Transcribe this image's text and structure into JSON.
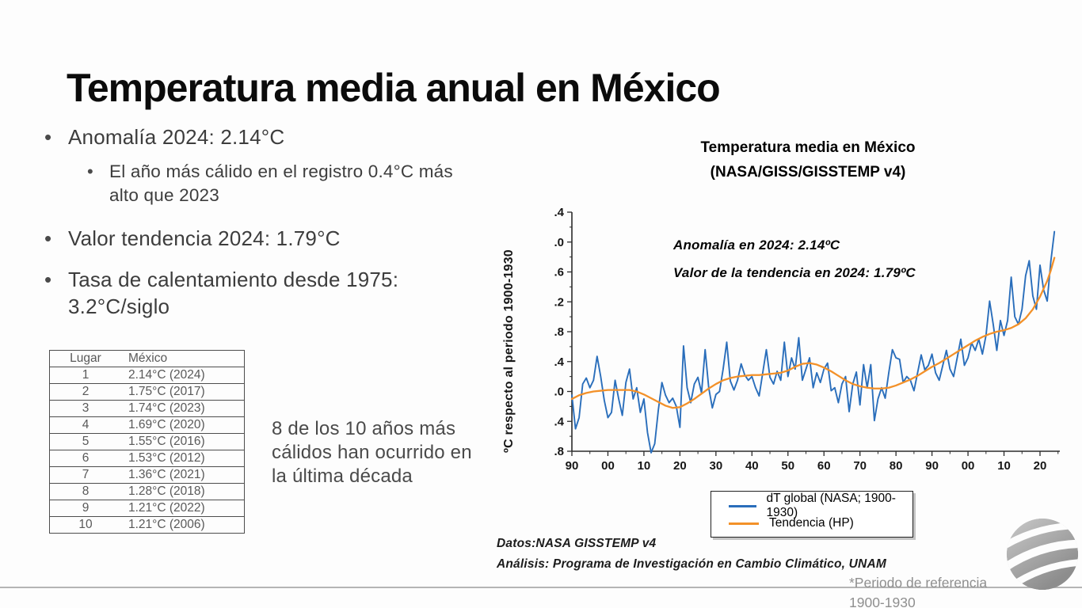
{
  "slide": {
    "title": "Temperatura media anual en México",
    "bullet1": "Anomalía 2024: 2.14°C",
    "bullet1_sub": "El año más cálido en el registro 0.4°C más alto que 2023",
    "bullet2": "Valor tendencia 2024: 1.79°C",
    "bullet3": "Tasa de calentamiento desde 1975: 3.2°C/siglo",
    "side_note": "8 de los 10 años más cálidos han ocurrido en la última década",
    "reference_note": "*Periodo de referencia 1900-1930",
    "bullet_glyph": "•"
  },
  "table": {
    "headers": [
      "Lugar",
      "México"
    ],
    "rows": [
      {
        "rank": "1",
        "value": "2.14°C (2024)"
      },
      {
        "rank": "2",
        "value": "1.75°C (2017)"
      },
      {
        "rank": "3",
        "value": "1.74°C (2023)"
      },
      {
        "rank": "4",
        "value": "1.69°C (2020)"
      },
      {
        "rank": "5",
        "value": "1.55°C (2016)"
      },
      {
        "rank": "6",
        "value": "1.53°C (2012)"
      },
      {
        "rank": "7",
        "value": "1.36°C (2021)"
      },
      {
        "rank": "8",
        "value": "1.28°C (2018)"
      },
      {
        "rank": "9",
        "value": "1.21°C (2022)"
      },
      {
        "rank": "10",
        "value": "1.21°C (2006)"
      }
    ]
  },
  "chart_data": {
    "type": "line",
    "title": "Temperatura media en México",
    "subtitle": "(NASA/GISS/GISSTEMP v4)",
    "ylabel": "ºC respecto al periodo 1900-1930",
    "xlabel": "",
    "ylim": [
      -0.8,
      2.4
    ],
    "xlim": [
      1890,
      2025.5
    ],
    "grid": false,
    "legend_position": "bottom",
    "y_ticks": [
      2.4,
      2.0,
      1.6,
      1.2,
      0.8,
      0.4,
      0.0,
      -0.4,
      -0.8
    ],
    "x_tick_years": [
      1890,
      1900,
      1910,
      1920,
      1930,
      1940,
      1950,
      1960,
      1970,
      1980,
      1990,
      2000,
      2010,
      2020
    ],
    "x_tick_labels": [
      "90",
      "00",
      "10",
      "20",
      "30",
      "40",
      "50",
      "60",
      "70",
      "80",
      "90",
      "00",
      "10",
      "20"
    ],
    "annotations": [
      "Anomalía en 2024: 2.14ºC",
      "Valor de la tendencia en 2024: 1.79ºC"
    ],
    "source_note": "Datos:NASA GISSTEMP v4",
    "analysis_note": "Análisis: Programa de Investigación en Cambio Climático, UNAM",
    "legend": [
      {
        "label": "dT global (NASA; 1900-1930)",
        "color": "#2a6ebb"
      },
      {
        "label": "Tendencia (HP)",
        "color": "#f39129"
      }
    ],
    "series": [
      {
        "name": "dT global (NASA; 1900-1930)",
        "color": "#2a6ebb",
        "x_start": 1890,
        "x_step": 1,
        "values": [
          -0.05,
          -0.5,
          -0.35,
          0.1,
          0.18,
          0.05,
          0.15,
          0.47,
          0.2,
          -0.12,
          -0.35,
          -0.28,
          0.15,
          -0.1,
          -0.32,
          0.12,
          0.3,
          -0.1,
          0.05,
          -0.28,
          -0.1,
          -0.55,
          -0.82,
          -0.7,
          -0.25,
          0.12,
          -0.05,
          -0.15,
          -0.09,
          -0.2,
          -0.48,
          0.61,
          0.05,
          -0.15,
          0.1,
          0.19,
          -0.02,
          0.56,
          0.05,
          -0.22,
          -0.04,
          0.0,
          0.3,
          0.66,
          0.14,
          0.02,
          0.15,
          0.37,
          0.22,
          0.15,
          0.2,
          0.05,
          -0.06,
          0.25,
          0.56,
          0.19,
          0.1,
          0.27,
          0.15,
          0.66,
          0.2,
          0.45,
          0.3,
          0.72,
          0.15,
          0.3,
          0.45,
          0.05,
          0.25,
          0.12,
          0.3,
          0.38,
          0.01,
          0.05,
          -0.15,
          0.1,
          0.2,
          -0.27,
          0.1,
          0.26,
          -0.18,
          0.36,
          0.05,
          0.36,
          -0.39,
          -0.1,
          0.05,
          -0.09,
          0.25,
          0.56,
          0.45,
          0.43,
          0.12,
          0.2,
          0.15,
          0.01,
          0.25,
          0.49,
          0.29,
          0.35,
          0.5,
          0.25,
          0.15,
          0.35,
          0.55,
          0.3,
          0.2,
          0.45,
          0.7,
          0.35,
          0.45,
          0.65,
          0.55,
          0.7,
          0.5,
          0.75,
          1.21,
          0.9,
          0.55,
          0.95,
          0.75,
          0.95,
          1.53,
          1.0,
          0.9,
          1.1,
          1.55,
          1.75,
          1.28,
          1.1,
          1.69,
          1.36,
          1.21,
          1.74,
          2.14
        ]
      },
      {
        "name": "Tendencia (HP)",
        "color": "#f39129",
        "points": [
          [
            1890,
            -0.1
          ],
          [
            1892,
            -0.05
          ],
          [
            1894,
            -0.02
          ],
          [
            1896,
            0.0
          ],
          [
            1898,
            0.01
          ],
          [
            1900,
            0.02
          ],
          [
            1902,
            0.02
          ],
          [
            1904,
            0.02
          ],
          [
            1906,
            0.02
          ],
          [
            1908,
            0.0
          ],
          [
            1910,
            -0.04
          ],
          [
            1912,
            -0.09
          ],
          [
            1914,
            -0.14
          ],
          [
            1916,
            -0.19
          ],
          [
            1918,
            -0.22
          ],
          [
            1920,
            -0.21
          ],
          [
            1922,
            -0.16
          ],
          [
            1924,
            -0.1
          ],
          [
            1926,
            -0.03
          ],
          [
            1928,
            0.04
          ],
          [
            1930,
            0.1
          ],
          [
            1932,
            0.15
          ],
          [
            1934,
            0.18
          ],
          [
            1936,
            0.2
          ],
          [
            1938,
            0.21
          ],
          [
            1940,
            0.22
          ],
          [
            1942,
            0.22
          ],
          [
            1944,
            0.23
          ],
          [
            1946,
            0.24
          ],
          [
            1948,
            0.25
          ],
          [
            1950,
            0.28
          ],
          [
            1952,
            0.33
          ],
          [
            1954,
            0.37
          ],
          [
            1956,
            0.38
          ],
          [
            1958,
            0.36
          ],
          [
            1960,
            0.32
          ],
          [
            1962,
            0.27
          ],
          [
            1964,
            0.21
          ],
          [
            1966,
            0.15
          ],
          [
            1968,
            0.1
          ],
          [
            1970,
            0.07
          ],
          [
            1972,
            0.05
          ],
          [
            1974,
            0.04
          ],
          [
            1976,
            0.04
          ],
          [
            1978,
            0.05
          ],
          [
            1980,
            0.08
          ],
          [
            1982,
            0.12
          ],
          [
            1984,
            0.16
          ],
          [
            1986,
            0.21
          ],
          [
            1988,
            0.27
          ],
          [
            1990,
            0.33
          ],
          [
            1992,
            0.38
          ],
          [
            1994,
            0.44
          ],
          [
            1996,
            0.5
          ],
          [
            1998,
            0.56
          ],
          [
            2000,
            0.62
          ],
          [
            2002,
            0.68
          ],
          [
            2004,
            0.73
          ],
          [
            2006,
            0.77
          ],
          [
            2008,
            0.8
          ],
          [
            2010,
            0.82
          ],
          [
            2012,
            0.85
          ],
          [
            2014,
            0.9
          ],
          [
            2016,
            0.98
          ],
          [
            2018,
            1.1
          ],
          [
            2020,
            1.27
          ],
          [
            2022,
            1.48
          ],
          [
            2023,
            1.62
          ],
          [
            2024,
            1.79
          ]
        ]
      }
    ]
  },
  "logo": {
    "icon": "globe-logo",
    "color": "#9a9a9a"
  }
}
